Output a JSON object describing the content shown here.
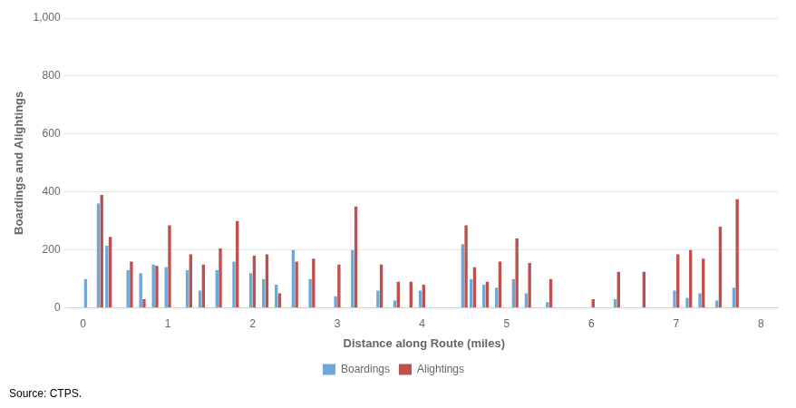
{
  "chart_data": {
    "type": "bar",
    "x": [
      0.05,
      0.2,
      0.3,
      0.55,
      0.7,
      0.85,
      1.0,
      1.25,
      1.4,
      1.6,
      1.8,
      2.0,
      2.15,
      2.3,
      2.5,
      2.7,
      3.0,
      3.2,
      3.5,
      3.7,
      3.85,
      4.0,
      4.5,
      4.6,
      4.75,
      4.9,
      5.1,
      5.25,
      5.5,
      6.0,
      6.3,
      6.6,
      7.0,
      7.15,
      7.3,
      7.5,
      7.7
    ],
    "series": [
      {
        "name": "Boardings",
        "color": "#6fa8d8",
        "values": [
          100,
          360,
          215,
          130,
          120,
          150,
          140,
          130,
          60,
          130,
          160,
          120,
          100,
          80,
          200,
          100,
          40,
          200,
          60,
          25,
          0,
          60,
          220,
          100,
          80,
          70,
          100,
          50,
          20,
          0,
          30,
          0,
          60,
          35,
          50,
          25,
          70
        ]
      },
      {
        "name": "Alightings",
        "color": "#c0504d",
        "values": [
          0,
          390,
          245,
          160,
          30,
          145,
          285,
          185,
          150,
          205,
          300,
          180,
          185,
          50,
          160,
          170,
          150,
          350,
          150,
          90,
          90,
          80,
          285,
          140,
          90,
          160,
          240,
          155,
          100,
          30,
          125,
          125,
          185,
          200,
          170,
          280,
          375
        ]
      }
    ],
    "xlabel": "Distance along Route (miles)",
    "ylabel": "Boardings and Alightings",
    "xlim": [
      -0.15,
      8.2
    ],
    "xticks": [
      0,
      1,
      2,
      3,
      4,
      5,
      6,
      7,
      8
    ],
    "ylim": [
      0,
      1000
    ],
    "yticks": [
      0,
      200,
      400,
      600,
      800,
      {
        "value": 1000,
        "label": "1,000"
      }
    ],
    "grid": "y",
    "legend": "bottom",
    "source": "Source: CTPS."
  }
}
